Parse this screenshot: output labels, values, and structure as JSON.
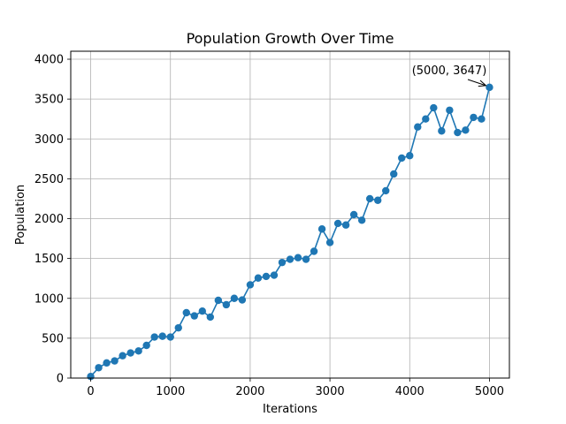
{
  "chart_data": {
    "type": "line",
    "title": "Population Growth Over Time",
    "xlabel": "Iterations",
    "ylabel": "Population",
    "xlim": [
      -250,
      5250
    ],
    "ylim": [
      0,
      4100
    ],
    "xticks": [
      0,
      1000,
      2000,
      3000,
      4000,
      5000
    ],
    "yticks": [
      0,
      500,
      1000,
      1500,
      2000,
      2500,
      3000,
      3500,
      4000
    ],
    "grid": true,
    "series": [
      {
        "color": "#1f77b4",
        "marker": "circle",
        "x": [
          0,
          100,
          200,
          300,
          400,
          500,
          600,
          700,
          800,
          900,
          1000,
          1100,
          1200,
          1300,
          1400,
          1500,
          1600,
          1700,
          1800,
          1900,
          2000,
          2100,
          2200,
          2300,
          2400,
          2500,
          2600,
          2700,
          2800,
          2900,
          3000,
          3100,
          3200,
          3300,
          3400,
          3500,
          3600,
          3700,
          3800,
          3900,
          4000,
          4100,
          4200,
          4300,
          4400,
          4500,
          4600,
          4700,
          4800,
          4900,
          5000
        ],
        "y": [
          20,
          130,
          190,
          215,
          280,
          315,
          340,
          410,
          515,
          525,
          515,
          630,
          820,
          780,
          840,
          765,
          975,
          920,
          1000,
          980,
          1170,
          1255,
          1275,
          1290,
          1450,
          1490,
          1510,
          1490,
          1590,
          1870,
          1700,
          1940,
          1920,
          2050,
          1980,
          2250,
          2230,
          2350,
          2560,
          2760,
          2790,
          3150,
          3250,
          3390,
          3100,
          3360,
          3080,
          3110,
          3270,
          3250,
          3647
        ]
      }
    ],
    "annotation": {
      "text": "(5000, 3647)",
      "point": [
        5000,
        3647
      ]
    }
  }
}
